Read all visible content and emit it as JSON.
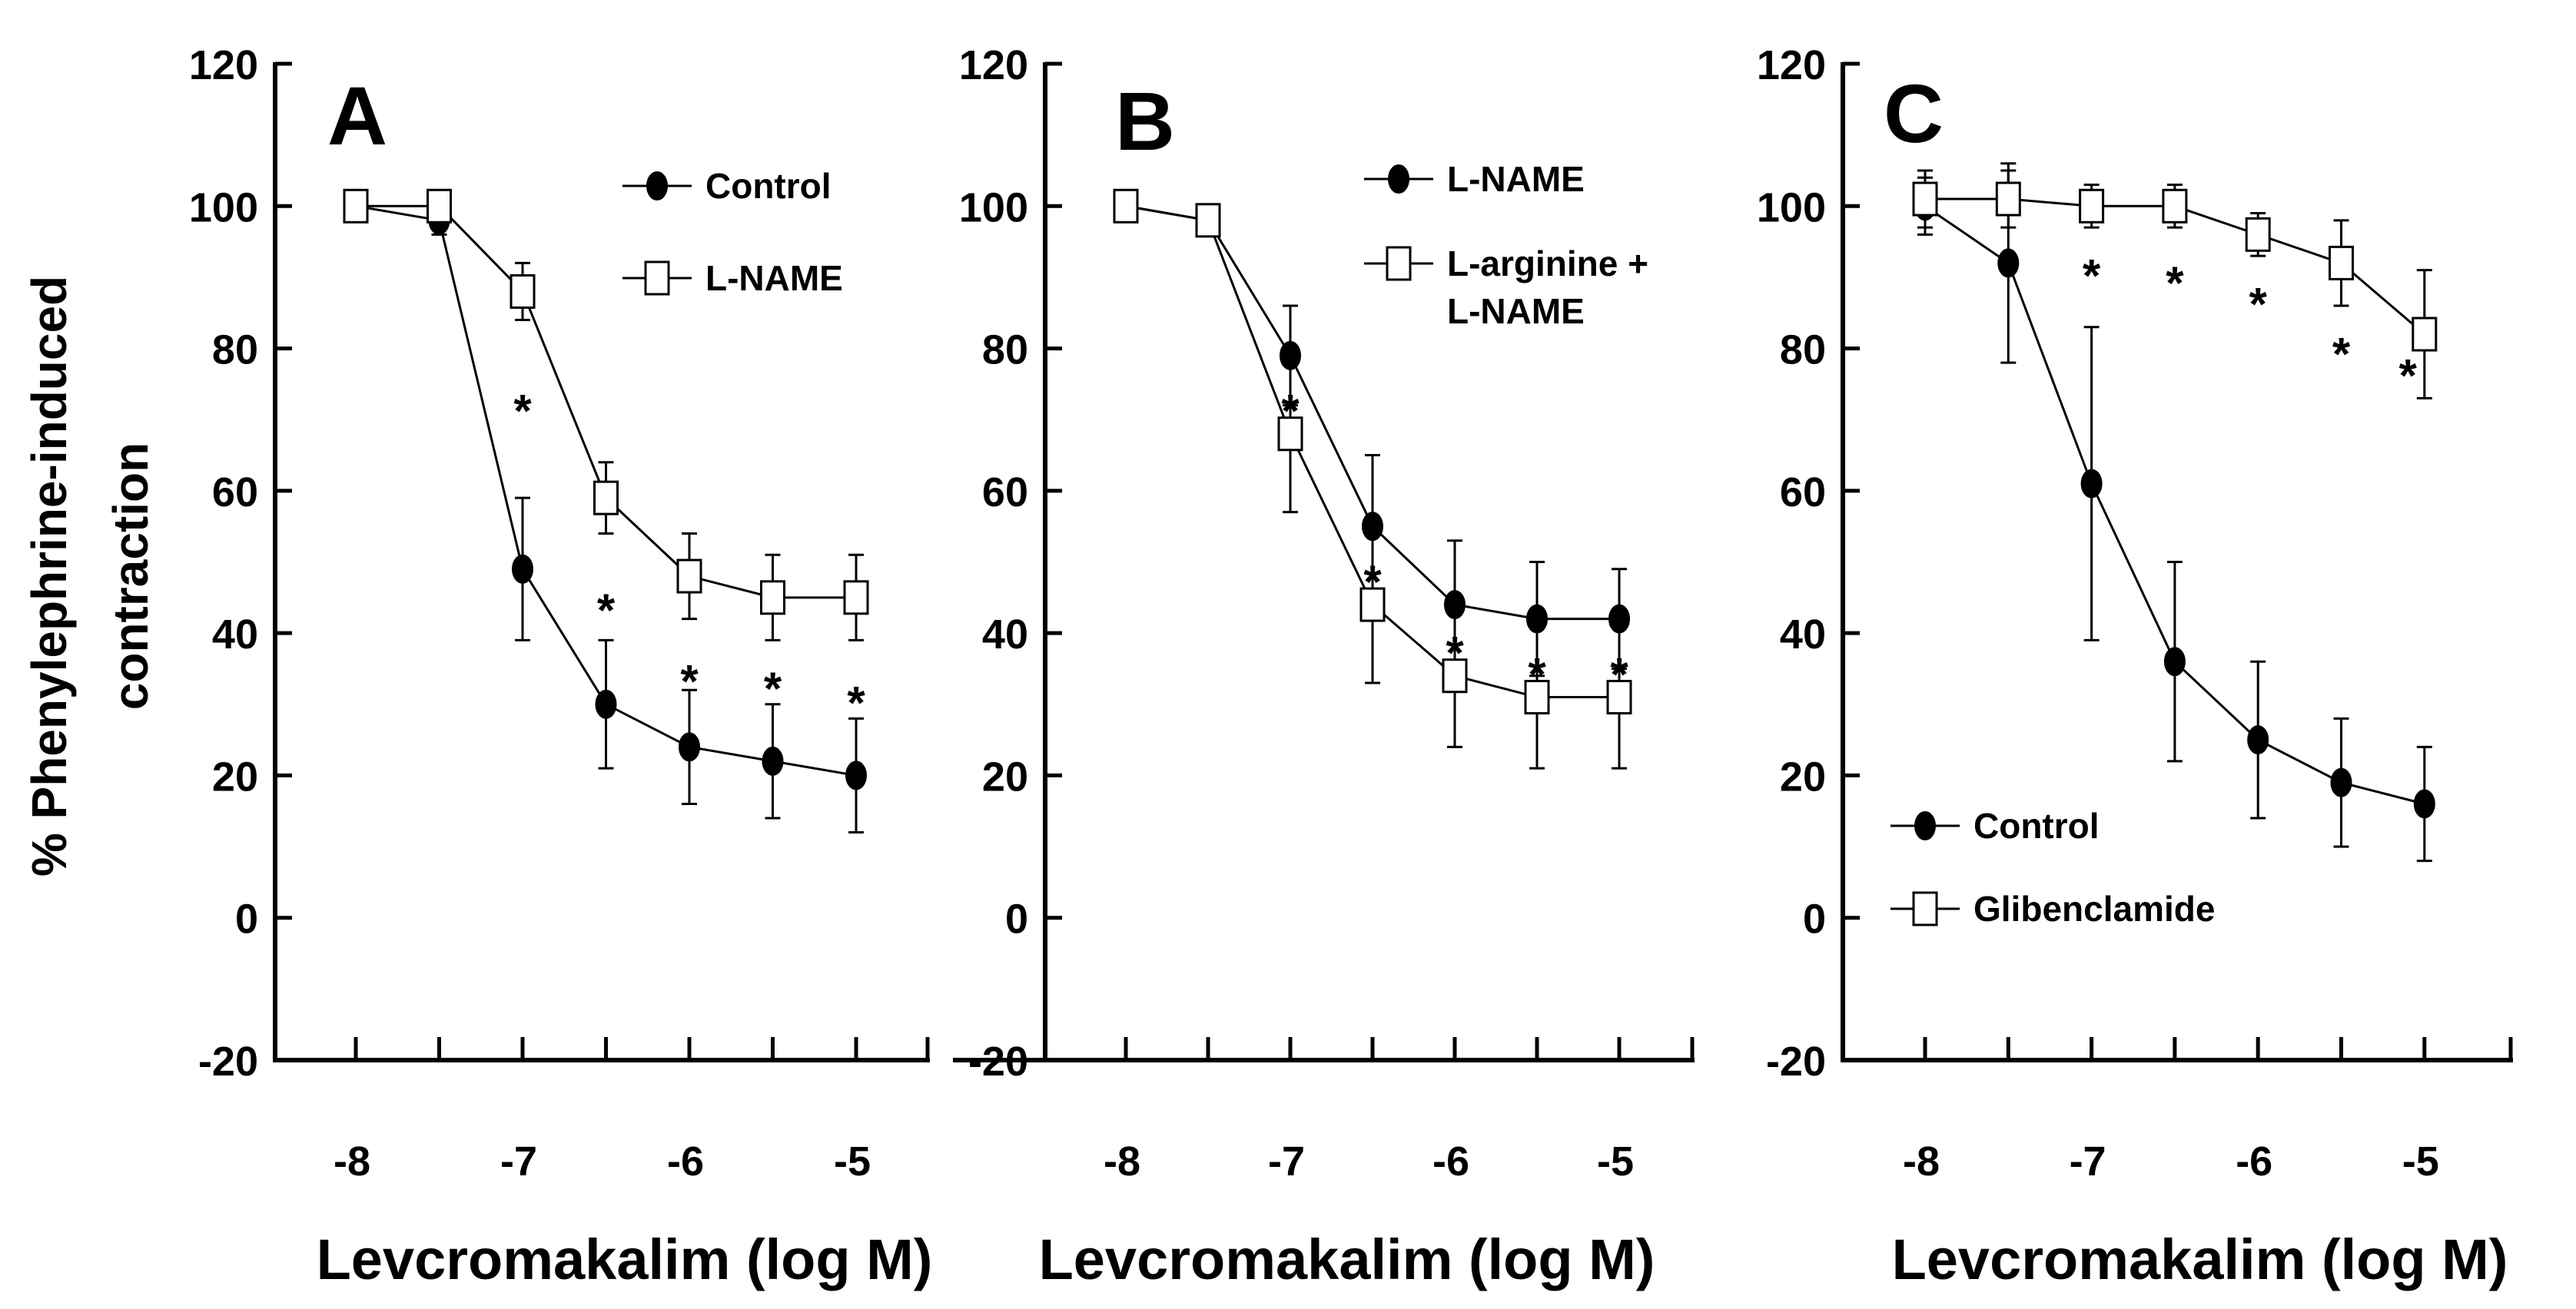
{
  "shared": {
    "ylabel_line1": "% Phenylephrine-induced",
    "ylabel_line2": "contraction",
    "xlabel": "Levcromakalim (log M)"
  },
  "chart_data": [
    {
      "type": "line",
      "panel_label": "A",
      "xlabel": "Levcromakalim (log M)",
      "ylabel": "% Phenylephrine-induced contraction",
      "x": [
        -8,
        -7.5,
        -7,
        -6.5,
        -6,
        -5.5,
        -5
      ],
      "x_ticks": [
        -8,
        -7.5,
        -7,
        -6.5,
        -6,
        -5.5,
        -5
      ],
      "x_tick_labels": [
        "-8",
        "-7",
        "-6",
        "-5"
      ],
      "x_tick_label_values": [
        -8,
        -7,
        -6,
        -5
      ],
      "xlim": [
        -8.5,
        -4.5
      ],
      "ylim": [
        -20,
        120
      ],
      "y_ticks": [
        -20,
        0,
        20,
        40,
        60,
        80,
        100,
        120
      ],
      "y_tick_labels": [
        "-20",
        "0",
        "20",
        "40",
        "60",
        "80",
        "100",
        "120"
      ],
      "legend_position": "top-right",
      "series": [
        {
          "name": "Control",
          "marker": "filled-circle",
          "values": [
            100,
            98,
            49,
            30,
            24,
            22,
            20
          ],
          "error": [
            2,
            2,
            10,
            9,
            8,
            8,
            8
          ]
        },
        {
          "name": "L-NAME",
          "marker": "open-square",
          "values": [
            100,
            100,
            88,
            59,
            48,
            45,
            45
          ],
          "error": [
            2,
            2,
            4,
            5,
            6,
            6,
            6
          ]
        }
      ],
      "annotations": [
        {
          "text": "*",
          "x": -7,
          "y": 72
        },
        {
          "text": "*",
          "x": -6.5,
          "y": 44
        },
        {
          "text": "*",
          "x": -6,
          "y": 34
        },
        {
          "text": "*",
          "x": -5.5,
          "y": 33
        },
        {
          "text": "*",
          "x": -5,
          "y": 31
        }
      ]
    },
    {
      "type": "line",
      "panel_label": "B",
      "xlabel": "Levcromakalim (log M)",
      "ylabel": "",
      "x": [
        -8,
        -7.5,
        -7,
        -6.5,
        -6,
        -5.5,
        -5
      ],
      "x_ticks": [
        -8,
        -7.5,
        -7,
        -6.5,
        -6,
        -5.5,
        -5
      ],
      "x_tick_labels": [
        "-8",
        "-7",
        "-6",
        "-5"
      ],
      "x_tick_label_values": [
        -8,
        -7,
        -6,
        -5
      ],
      "xlim": [
        -8.5,
        -4.5
      ],
      "ylim": [
        -20,
        120
      ],
      "y_ticks": [
        -20,
        0,
        20,
        40,
        60,
        80,
        100,
        120
      ],
      "y_tick_labels": [
        "-20",
        "0",
        "20",
        "40",
        "60",
        "80",
        "100",
        "120"
      ],
      "legend_position": "top-right",
      "series": [
        {
          "name": "L-NAME",
          "marker": "filled-circle",
          "values": [
            100,
            98,
            79,
            55,
            44,
            42,
            42
          ],
          "error": [
            2,
            2,
            7,
            10,
            9,
            8,
            7
          ]
        },
        {
          "name": "L-arginine + L-NAME",
          "legend_lines": [
            "L-arginine +",
            "L-NAME"
          ],
          "marker": "open-square",
          "values": [
            100,
            98,
            68,
            44,
            34,
            31,
            31
          ],
          "error": [
            2,
            2,
            11,
            11,
            10,
            10,
            10
          ]
        }
      ],
      "annotations": [
        {
          "text": "*",
          "x": -7,
          "y": 72
        },
        {
          "text": "*",
          "x": -6.5,
          "y": 48
        },
        {
          "text": "*",
          "x": -6,
          "y": 38
        },
        {
          "text": "*",
          "x": -5.5,
          "y": 35
        },
        {
          "text": "*",
          "x": -5,
          "y": 35
        }
      ]
    },
    {
      "type": "line",
      "panel_label": "C",
      "xlabel": "Levcromakalim (log M)",
      "ylabel": "",
      "x": [
        -8,
        -7.5,
        -7,
        -6.5,
        -6,
        -5.5,
        -5
      ],
      "x_ticks": [
        -8,
        -7.5,
        -7,
        -6.5,
        -6,
        -5.5,
        -5
      ],
      "x_tick_labels": [
        "-8",
        "-7",
        "-6",
        "-5"
      ],
      "x_tick_label_values": [
        -8,
        -7,
        -6,
        -5
      ],
      "xlim": [
        -8.5,
        -4.5
      ],
      "ylim": [
        -20,
        120
      ],
      "y_ticks": [
        -20,
        0,
        20,
        40,
        60,
        80,
        100,
        120
      ],
      "y_tick_labels": [
        "-20",
        "0",
        "20",
        "40",
        "60",
        "80",
        "100",
        "120"
      ],
      "legend_position": "bottom-left",
      "series": [
        {
          "name": "Control",
          "marker": "filled-circle",
          "values": [
            100,
            92,
            61,
            36,
            25,
            19,
            16
          ],
          "error": [
            4,
            14,
            22,
            14,
            11,
            9,
            8
          ]
        },
        {
          "name": "Glibenclamide",
          "marker": "open-square",
          "values": [
            101,
            101,
            100,
            100,
            96,
            92,
            82
          ],
          "error": [
            4,
            4,
            3,
            3,
            3,
            6,
            9
          ]
        }
      ],
      "annotations": [
        {
          "text": "*",
          "x": -7,
          "y": 91
        },
        {
          "text": "*",
          "x": -6.5,
          "y": 90
        },
        {
          "text": "*",
          "x": -6,
          "y": 87
        },
        {
          "text": "*",
          "x": -5.5,
          "y": 80
        },
        {
          "text": "*",
          "x": -5.1,
          "y": 77
        }
      ]
    }
  ]
}
